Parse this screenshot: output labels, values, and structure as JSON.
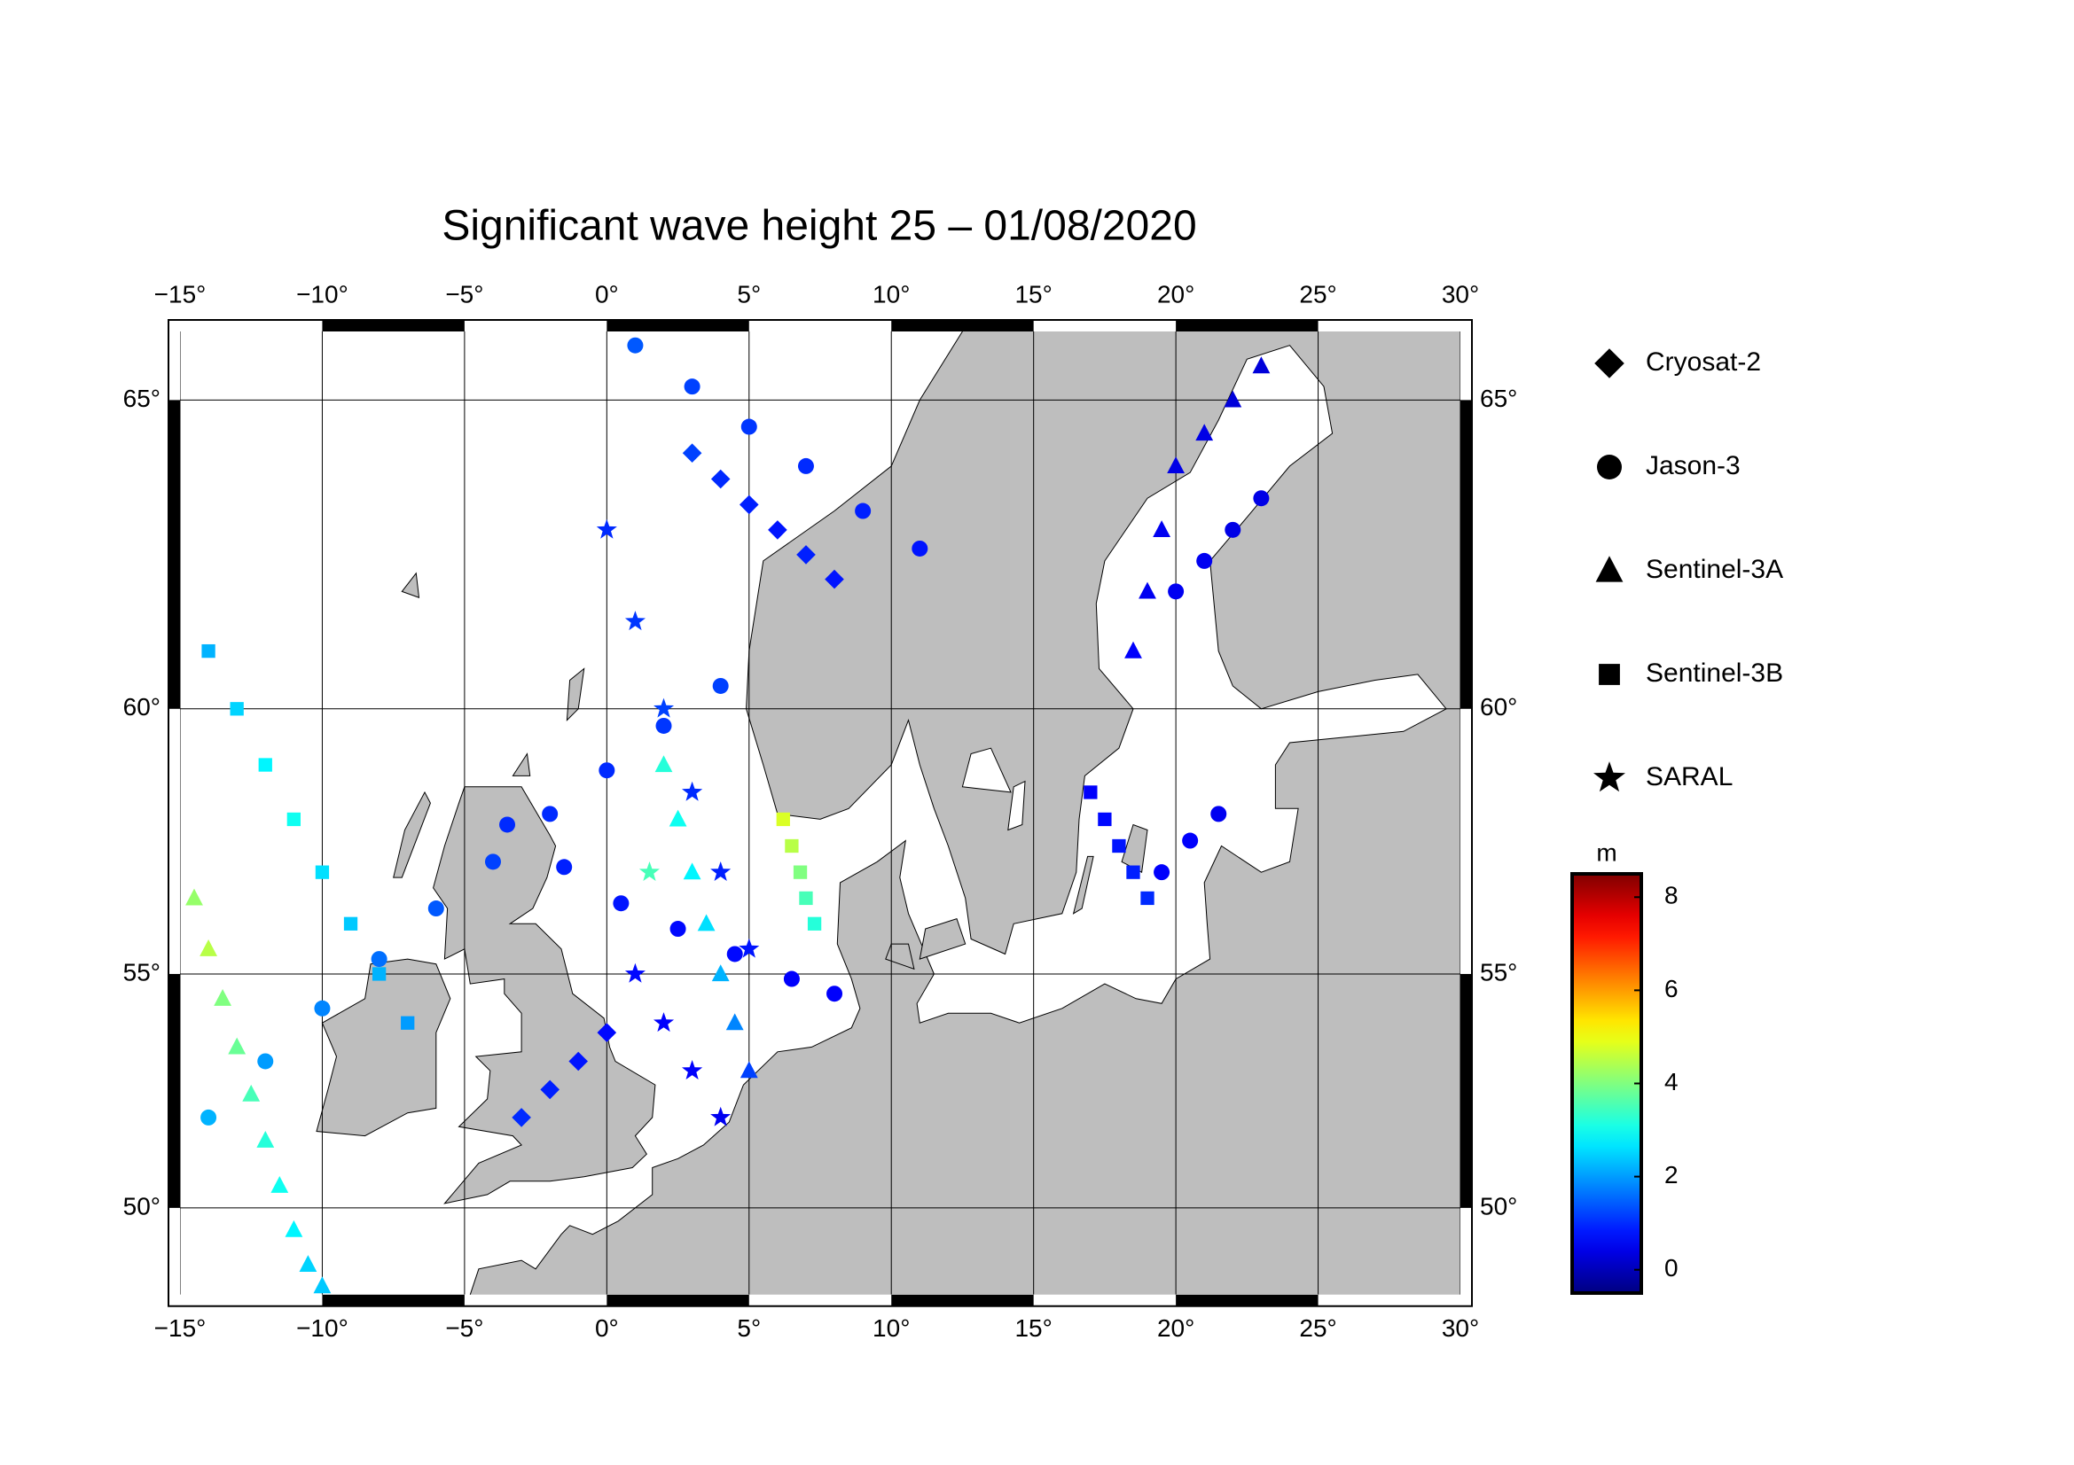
{
  "chart_data": {
    "type": "map",
    "title": "Significant wave height 25 – 01/08/2020",
    "xlim": [
      -15,
      30
    ],
    "ylim": [
      48,
      66
    ],
    "xticks": [
      {
        "value": -15,
        "label": "−15°"
      },
      {
        "value": -10,
        "label": "−10°"
      },
      {
        "value": -5,
        "label": "−5°"
      },
      {
        "value": 0,
        "label": "0°"
      },
      {
        "value": 5,
        "label": "5°"
      },
      {
        "value": 10,
        "label": "10°"
      },
      {
        "value": 15,
        "label": "15°"
      },
      {
        "value": 20,
        "label": "20°"
      },
      {
        "value": 25,
        "label": "25°"
      },
      {
        "value": 30,
        "label": "30°"
      }
    ],
    "yticks": [
      {
        "value": 50,
        "label": "50°"
      },
      {
        "value": 55,
        "label": "55°"
      },
      {
        "value": 60,
        "label": "60°"
      },
      {
        "value": 65,
        "label": "65°"
      }
    ],
    "grid": true,
    "colorbar": {
      "label": "m",
      "clim": [
        -0.5,
        8.5
      ],
      "ticks": [
        0,
        2,
        4,
        6,
        8
      ],
      "colormap": "jet"
    },
    "series": [
      {
        "name": "Cryosat-2",
        "marker": "diamond",
        "color": "#000000",
        "lon": [
          3,
          4,
          5,
          6,
          7,
          8,
          -3,
          -2,
          -1,
          0
        ],
        "lat": [
          64.2,
          63.8,
          63.4,
          63,
          62.6,
          62.2,
          52,
          52.6,
          53.2,
          53.8
        ],
        "values": [
          1.2,
          1.0,
          0.9,
          0.8,
          0.9,
          0.8,
          1.0,
          0.9,
          0.8,
          0.7
        ]
      },
      {
        "name": "Jason-3",
        "marker": "circle",
        "color": "#000000",
        "lon": [
          -14,
          -12,
          -10,
          -8,
          -6,
          -4,
          -2,
          0,
          2,
          4,
          -3.5,
          -1.5,
          0.5,
          2.5,
          4.5,
          6.5,
          8,
          1,
          3,
          5,
          7,
          9,
          11,
          20,
          21,
          22,
          23,
          19.5,
          20.5,
          21.5
        ],
        "lat": [
          52,
          53.2,
          54.3,
          55.3,
          56.3,
          57.2,
          58.1,
          58.9,
          59.7,
          60.4,
          57.9,
          57.1,
          56.4,
          55.9,
          55.4,
          54.9,
          54.6,
          65.8,
          65.2,
          64.6,
          64,
          63.3,
          62.7,
          62,
          62.5,
          63,
          63.5,
          57,
          57.6,
          58.1
        ],
        "values": [
          2.2,
          2.0,
          1.8,
          1.6,
          1.4,
          1.2,
          1.0,
          1.0,
          1.1,
          1.2,
          1.0,
          0.9,
          0.8,
          0.7,
          0.7,
          0.6,
          0.6,
          1.4,
          1.2,
          1.1,
          1.0,
          0.9,
          0.8,
          0.5,
          0.5,
          0.4,
          0.4,
          0.6,
          0.6,
          0.5
        ]
      },
      {
        "name": "Sentinel-3A",
        "marker": "triangle",
        "color": "#000000",
        "lon": [
          -14.5,
          -14,
          -13.5,
          -13,
          -12.5,
          -12,
          -11.5,
          -11,
          -10.5,
          -10,
          2,
          2.5,
          3,
          3.5,
          4,
          4.5,
          5,
          18.5,
          19,
          19.5,
          20,
          21,
          22,
          23
        ],
        "lat": [
          56.5,
          55.5,
          54.5,
          53.5,
          52.5,
          51.5,
          50.5,
          49.5,
          48.7,
          48.2,
          59,
          58,
          57,
          56,
          55,
          54,
          53,
          61,
          62,
          63,
          64,
          64.5,
          65,
          65.5
        ],
        "values": [
          4.2,
          4.5,
          4.0,
          3.8,
          3.5,
          3.2,
          3.0,
          2.8,
          2.5,
          2.4,
          3.2,
          3.0,
          2.8,
          2.6,
          2.2,
          1.8,
          1.2,
          0.6,
          0.5,
          0.5,
          0.4,
          0.4,
          0.3,
          0.3
        ]
      },
      {
        "name": "Sentinel-3B",
        "marker": "square",
        "color": "#000000",
        "lon": [
          -14,
          -13,
          -12,
          -11,
          -10,
          -9,
          -8,
          -7,
          6.2,
          6.5,
          6.8,
          7,
          7.3,
          17,
          17.5,
          18,
          18.5,
          19
        ],
        "lat": [
          61,
          60,
          59,
          58,
          57,
          56,
          55,
          54,
          58,
          57.5,
          57,
          56.5,
          56,
          58.5,
          58,
          57.5,
          57,
          56.5
        ],
        "values": [
          2.2,
          2.5,
          2.8,
          3.0,
          2.6,
          2.4,
          2.2,
          2.0,
          4.8,
          4.5,
          4.0,
          3.5,
          3.2,
          0.6,
          0.7,
          0.8,
          0.9,
          1.0
        ]
      },
      {
        "name": "SARAL",
        "marker": "star",
        "color": "#000000",
        "lon": [
          0,
          1,
          2,
          3,
          4,
          5,
          1,
          2,
          3,
          4,
          1.5
        ],
        "lat": [
          63,
          61.5,
          60,
          58.5,
          57,
          55.5,
          55,
          54,
          53,
          52,
          57
        ],
        "values": [
          1.0,
          1.1,
          1.2,
          1.0,
          0.9,
          0.8,
          0.7,
          0.6,
          0.6,
          0.5,
          3.5
        ]
      }
    ]
  }
}
